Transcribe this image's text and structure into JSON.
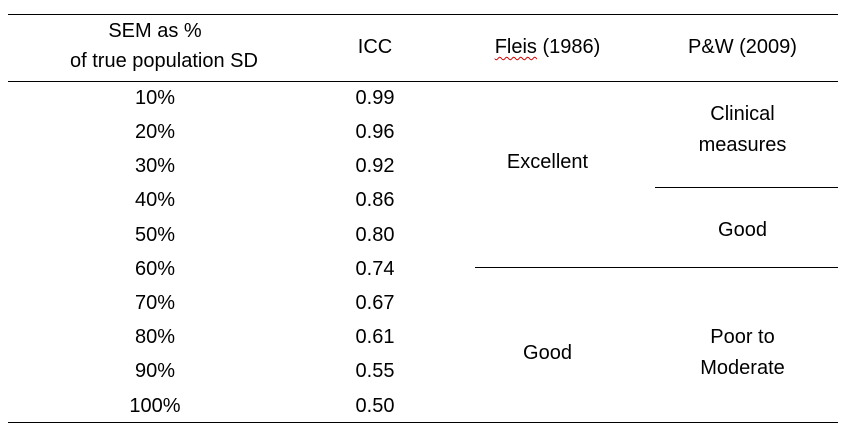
{
  "table": {
    "headers": {
      "sem_line1": "SEM as %",
      "sem_line2": "of true population SD",
      "icc": "ICC",
      "fleis_word": "Fleis",
      "fleis_year": " (1986)",
      "pw": "P&W (2009)"
    },
    "rows": [
      {
        "sem": "10%",
        "icc": "0.99"
      },
      {
        "sem": "20%",
        "icc": "0.96"
      },
      {
        "sem": "30%",
        "icc": "0.92"
      },
      {
        "sem": "40%",
        "icc": "0.86"
      },
      {
        "sem": "50%",
        "icc": "0.80"
      },
      {
        "sem": "60%",
        "icc": "0.74"
      },
      {
        "sem": "70%",
        "icc": "0.67"
      },
      {
        "sem": "80%",
        "icc": "0.61"
      },
      {
        "sem": "90%",
        "icc": "0.55"
      },
      {
        "sem": "100%",
        "icc": "0.50"
      }
    ],
    "fleis_categories": {
      "excellent": "Excellent",
      "good": "Good"
    },
    "pw_categories": {
      "clinical_line1": "Clinical",
      "clinical_line2": "measures",
      "good": "Good",
      "poor_line1": "Poor to",
      "poor_line2": "Moderate"
    }
  }
}
